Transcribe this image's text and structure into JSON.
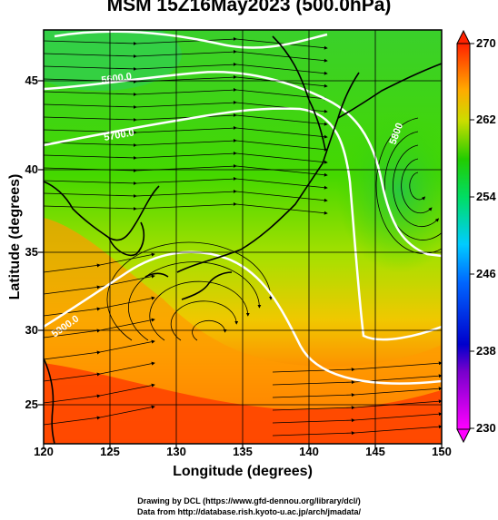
{
  "title": "MSM 15Z16May2023 (500.0hPa)",
  "x_axis": {
    "label": "Longitude (degrees)",
    "ticks": [
      "120",
      "125",
      "130",
      "135",
      "140",
      "145",
      "150"
    ],
    "range": [
      120,
      150
    ]
  },
  "y_axis": {
    "label": "Latitude  (degrees)",
    "ticks": [
      "25",
      "30",
      "35",
      "40",
      "45"
    ],
    "range": [
      22.4,
      47.6
    ]
  },
  "colorbar": {
    "ticks": [
      "230",
      "238",
      "246",
      "254",
      "262",
      "270"
    ],
    "range": [
      230,
      270
    ],
    "colors": [
      "#ff00ff",
      "#0000cc",
      "#0088ff",
      "#00dd88",
      "#22dd00",
      "#dddd00",
      "#ff8800",
      "#ff2200"
    ]
  },
  "contour_labels": [
    "5600.0",
    "5700.0",
    "5800.0",
    "5900.0",
    "5800"
  ],
  "credits": [
    "Drawing by DCL (https://www.gfd-dennou.org/library/dcl/)",
    "Data from http://database.rish.kyoto-u.ac.jp/arch/jmadata/"
  ],
  "colors": {
    "ocean_green": "#33d100",
    "warm_orange": "#ff8c00",
    "hot_red": "#ff3a00",
    "contour_white": "#ffffff",
    "coast": "#000000"
  }
}
